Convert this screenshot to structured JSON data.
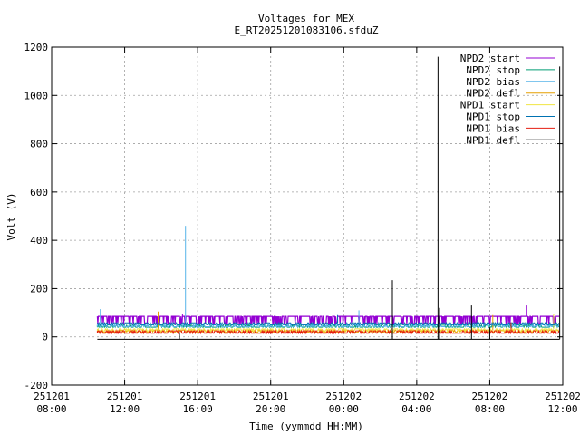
{
  "chart_data": {
    "type": "line",
    "title": "Voltages for MEX",
    "subtitle": "E_RT20251201083106.sfduZ",
    "xlabel": "Time (yymmdd HH:MM)",
    "ylabel": "Volt (V)",
    "xlim": [
      "2025-12-01 08:00",
      "2025-12-02 12:00"
    ],
    "ylim": [
      -200,
      1200
    ],
    "grid": true,
    "legend_position": "top-right",
    "x_ticks": [
      {
        "date": "251201",
        "time": "08:00"
      },
      {
        "date": "251201",
        "time": "12:00"
      },
      {
        "date": "251201",
        "time": "16:00"
      },
      {
        "date": "251201",
        "time": "20:00"
      },
      {
        "date": "251202",
        "time": "00:00"
      },
      {
        "date": "251202",
        "time": "04:00"
      },
      {
        "date": "251202",
        "time": "08:00"
      },
      {
        "date": "251202",
        "time": "12:00"
      }
    ],
    "y_ticks": [
      "-200",
      "0",
      "200",
      "400",
      "600",
      "800",
      "1000",
      "1200"
    ],
    "series": [
      {
        "name": "NPD2 start",
        "color": "#9400d3",
        "baseline": 85,
        "low": 55,
        "spikes": [
          [
            "2025-12-01 15:10",
            95
          ],
          [
            "2025-12-02 10:00",
            130
          ]
        ]
      },
      {
        "name": "NPD2 stop",
        "color": "#009e73",
        "baseline": 48,
        "low": 40,
        "spikes": [
          [
            "2025-12-02 07:20",
            70
          ]
        ]
      },
      {
        "name": "NPD2 bias",
        "color": "#56b4e9",
        "baseline": 50,
        "low": 42,
        "spikes": [
          [
            "2025-12-01 10:40",
            115
          ],
          [
            "2025-12-01 15:20",
            460
          ],
          [
            "2025-12-02 00:50",
            110
          ]
        ]
      },
      {
        "name": "NPD2 defl",
        "color": "#e69f00",
        "baseline": 28,
        "low": 20,
        "spikes": [
          [
            "2025-12-01 13:50",
            105
          ],
          [
            "2025-12-02 08:10",
            90
          ]
        ]
      },
      {
        "name": "NPD1 start",
        "color": "#f0e442",
        "baseline": 33,
        "low": 25,
        "spikes": [
          [
            "2025-12-02 11:30",
            95
          ]
        ]
      },
      {
        "name": "NPD1 stop",
        "color": "#0072b2",
        "baseline": 58,
        "low": 50,
        "spikes": [
          [
            "2025-12-01 23:40",
            90
          ]
        ]
      },
      {
        "name": "NPD1 bias",
        "color": "#e51e10",
        "baseline": 25,
        "low": 15,
        "spikes": [
          [
            "2025-12-02 09:10",
            60
          ]
        ]
      },
      {
        "name": "NPD1 defl",
        "color": "#000000",
        "baseline": -10,
        "low": -10,
        "spikes": [
          [
            "2025-12-01 15:00",
            20
          ],
          [
            "2025-12-02 02:40",
            235
          ],
          [
            "2025-12-02 05:10",
            1160
          ],
          [
            "2025-12-02 05:15",
            120
          ],
          [
            "2025-12-02 07:00",
            130
          ],
          [
            "2025-12-02 08:00",
            40
          ],
          [
            "2025-12-02 11:50",
            1120
          ]
        ]
      }
    ],
    "x_start": "2025-12-01 10:30",
    "x_end": "2025-12-02 11:50"
  }
}
